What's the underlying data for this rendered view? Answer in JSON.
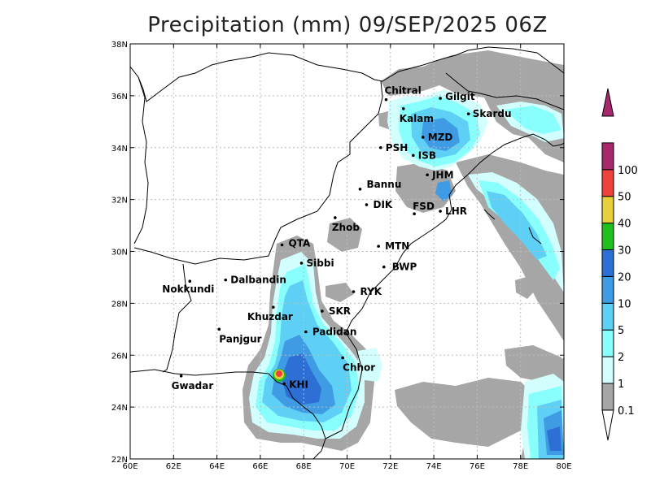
{
  "title": "Precipitation (mm) 09/SEP/2025 06Z",
  "map": {
    "lon_range": [
      60,
      80
    ],
    "lat_range": [
      22,
      38
    ],
    "lon_ticks": [
      "60E",
      "62E",
      "64E",
      "66E",
      "68E",
      "70E",
      "72E",
      "74E",
      "76E",
      "78E",
      "80E"
    ],
    "lat_ticks": [
      "22N",
      "24N",
      "26N",
      "28N",
      "30N",
      "32N",
      "34N",
      "36N",
      "38N"
    ],
    "grid": true
  },
  "legend": {
    "levels": [
      "0.1",
      "1",
      "2",
      "5",
      "10",
      "20",
      "30",
      "40",
      "50",
      "100"
    ],
    "colors": [
      "#a6a6a6",
      "#d2fffe",
      "#88fefd",
      "#5fd0f5",
      "#3f9be3",
      "#2d6fd4",
      "#1fbf1f",
      "#e6d13a",
      "#f0423c",
      "#a8286d"
    ]
  },
  "cities": [
    {
      "name": "Chitral",
      "lon": 71.8,
      "lat": 35.85
    },
    {
      "name": "Kalam",
      "lon": 72.6,
      "lat": 35.5
    },
    {
      "name": "Gilgit",
      "lon": 74.3,
      "lat": 35.9
    },
    {
      "name": "Skardu",
      "lon": 75.6,
      "lat": 35.3
    },
    {
      "name": "MZD",
      "lon": 73.5,
      "lat": 34.4
    },
    {
      "name": "PSH",
      "lon": 71.55,
      "lat": 34.0
    },
    {
      "name": "ISB",
      "lon": 73.05,
      "lat": 33.7
    },
    {
      "name": "JHM",
      "lon": 73.7,
      "lat": 32.95
    },
    {
      "name": "Bannu",
      "lon": 70.6,
      "lat": 32.4
    },
    {
      "name": "DIK",
      "lon": 70.9,
      "lat": 31.8
    },
    {
      "name": "FSD",
      "lon": 73.1,
      "lat": 31.45
    },
    {
      "name": "LHR",
      "lon": 74.3,
      "lat": 31.55
    },
    {
      "name": "Zhob",
      "lon": 69.45,
      "lat": 31.3
    },
    {
      "name": "QTA",
      "lon": 67.0,
      "lat": 30.25
    },
    {
      "name": "MTN",
      "lon": 71.45,
      "lat": 30.2
    },
    {
      "name": "Sibbi",
      "lon": 67.9,
      "lat": 29.55
    },
    {
      "name": "BWP",
      "lon": 71.7,
      "lat": 29.4
    },
    {
      "name": "Nokkundi",
      "lon": 62.75,
      "lat": 28.85
    },
    {
      "name": "Dalbandin",
      "lon": 64.4,
      "lat": 28.9
    },
    {
      "name": "RYK",
      "lon": 70.3,
      "lat": 28.45
    },
    {
      "name": "SKR",
      "lon": 68.85,
      "lat": 27.7
    },
    {
      "name": "Khuzdar",
      "lon": 66.6,
      "lat": 27.85
    },
    {
      "name": "Padidan",
      "lon": 68.1,
      "lat": 26.9
    },
    {
      "name": "Panjgur",
      "lon": 64.1,
      "lat": 27.0
    },
    {
      "name": "Chhor",
      "lon": 69.8,
      "lat": 25.9
    },
    {
      "name": "KHI",
      "lon": 67.1,
      "lat": 24.9
    },
    {
      "name": "Gwadar",
      "lon": 62.35,
      "lat": 25.2
    }
  ]
}
